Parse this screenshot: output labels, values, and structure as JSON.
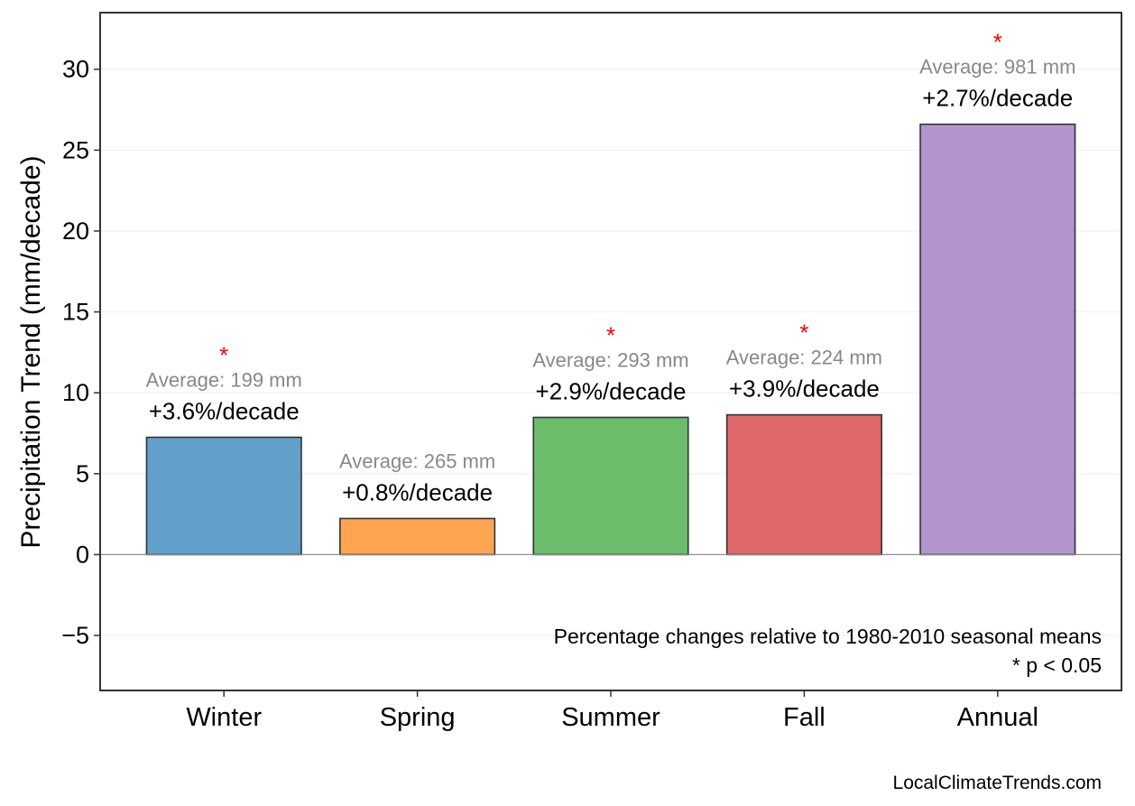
{
  "chart_data": {
    "type": "bar",
    "categories": [
      "Winter",
      "Spring",
      "Summer",
      "Fall",
      "Annual"
    ],
    "values": [
      7.25,
      2.23,
      8.48,
      8.64,
      26.6
    ],
    "colors": [
      "#62a0cc",
      "#ffa552",
      "#6bbd6b",
      "#e0676a",
      "#b294cf"
    ],
    "percent_labels": [
      "+3.6%/decade",
      "+0.8%/decade",
      "+2.9%/decade",
      "+3.9%/decade",
      "+2.7%/decade"
    ],
    "average_labels": [
      "Average: 199 mm",
      "Average: 265 mm",
      "Average: 293 mm",
      "Average: 224 mm",
      "Average: 981 mm"
    ],
    "significant": [
      true,
      false,
      true,
      true,
      true
    ],
    "significance_marker": "*",
    "ylabel": "Precipitation Trend (mm/decade)",
    "xlabel": "",
    "ylim": [
      -8.4,
      33.5
    ],
    "yticks": [
      -5,
      0,
      5,
      10,
      15,
      20,
      25,
      30
    ],
    "ytick_labels": [
      "−5",
      "0",
      "5",
      "10",
      "15",
      "20",
      "25",
      "30"
    ],
    "grid": true,
    "annotation_line1": "Percentage changes relative to 1980-2010 seasonal means",
    "annotation_line2": "* p < 0.05",
    "credit": "LocalClimateTrends.com"
  }
}
